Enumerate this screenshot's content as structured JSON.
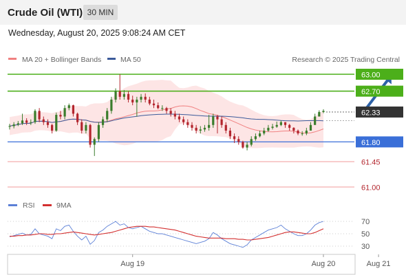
{
  "header": {
    "instrument": "Crude Oil (WTI)",
    "timeframe": "30 MIN"
  },
  "datetime": "Wednesday, August 20, 2025 9:08:24 AM CET",
  "credit": "Research © 2025 Trading Central",
  "colors": {
    "up": "#3a7d2c",
    "down": "#b3262e",
    "resistance": "#4caf1a",
    "current": "#333333",
    "pivot": "#3a6fd8",
    "support": "#f19a9a",
    "ma20": "#f08080",
    "ma50": "#3b5a9a",
    "band_fill": "#fde1e1",
    "arrow": "#2d62a8",
    "rsi": "#5b7fd6",
    "rsi_ma": "#d32f2f"
  },
  "chart_data": [
    {
      "type": "candlestick",
      "legend": [
        {
          "name": "MA 20 + Bollinger Bands",
          "color": "#f08080"
        },
        {
          "name": "MA 50",
          "color": "#3b5a9a"
        }
      ],
      "ylim": [
        60.85,
        63.25
      ],
      "x_labels": [
        {
          "label": "Aug 19",
          "index": 29
        },
        {
          "label": "Aug 20",
          "index": 74
        },
        {
          "label": "Aug 21",
          "index": 87
        }
      ],
      "levels": [
        {
          "label": "63.00",
          "value": 63.0,
          "kind": "resistance"
        },
        {
          "label": "62.70",
          "value": 62.7,
          "kind": "resistance"
        },
        {
          "label": "62.33",
          "value": 62.33,
          "kind": "current"
        },
        {
          "label": "61.80",
          "value": 61.8,
          "kind": "pivot"
        },
        {
          "label": "61.45",
          "value": 61.45,
          "kind": "support"
        },
        {
          "label": "61.00",
          "value": 61.0,
          "kind": "support"
        }
      ],
      "projection": {
        "from": [
          83,
          62.35
        ],
        "to": [
          90,
          62.98
        ]
      },
      "candles": {
        "open": [
          62.07,
          62.08,
          62.11,
          62.13,
          62.18,
          62.14,
          62.15,
          62.35,
          62.2,
          62.15,
          62.1,
          62.0,
          62.28,
          62.25,
          62.4,
          62.45,
          62.3,
          62.15,
          62.0,
          62.1,
          61.75,
          61.85,
          62.1,
          62.2,
          62.35,
          62.55,
          62.7,
          62.6,
          62.65,
          62.55,
          62.5,
          62.55,
          62.6,
          62.55,
          62.48,
          62.45,
          62.4,
          62.4,
          62.35,
          62.3,
          62.25,
          62.2,
          62.15,
          62.1,
          62.05,
          62.0,
          62.02,
          62.05,
          62.1,
          62.25,
          62.2,
          62.1,
          62.0,
          61.9,
          61.85,
          61.8,
          61.7,
          61.75,
          61.85,
          61.9,
          61.95,
          62.0,
          62.05,
          62.07,
          62.1,
          62.15,
          62.1,
          62.05,
          62.0,
          61.95,
          61.95,
          62.0,
          62.1,
          62.25,
          62.33
        ],
        "close": [
          62.08,
          62.11,
          62.13,
          62.18,
          62.14,
          62.15,
          62.35,
          62.2,
          62.15,
          62.1,
          62.0,
          62.28,
          62.25,
          62.4,
          62.45,
          62.3,
          62.15,
          62.0,
          62.1,
          61.75,
          61.85,
          62.1,
          62.2,
          62.35,
          62.55,
          62.7,
          62.6,
          62.65,
          62.55,
          62.5,
          62.55,
          62.6,
          62.55,
          62.48,
          62.45,
          62.4,
          62.4,
          62.35,
          62.3,
          62.25,
          62.2,
          62.15,
          62.1,
          62.05,
          62.0,
          62.02,
          62.05,
          62.1,
          62.25,
          62.2,
          62.1,
          62.0,
          61.9,
          61.85,
          61.8,
          61.7,
          61.75,
          61.85,
          61.9,
          61.95,
          62.0,
          62.05,
          62.07,
          62.1,
          62.15,
          62.1,
          62.05,
          62.0,
          61.95,
          61.95,
          62.0,
          62.1,
          62.25,
          62.33,
          62.35
        ],
        "high": [
          62.12,
          62.15,
          62.17,
          62.3,
          62.22,
          62.2,
          62.38,
          62.4,
          62.25,
          62.2,
          62.12,
          62.32,
          62.35,
          62.45,
          62.48,
          62.46,
          62.32,
          62.2,
          62.15,
          62.12,
          61.88,
          62.15,
          62.25,
          62.4,
          62.6,
          62.75,
          63.0,
          62.72,
          62.7,
          62.62,
          62.6,
          62.65,
          62.66,
          62.6,
          62.55,
          62.5,
          62.45,
          62.42,
          62.4,
          62.35,
          62.3,
          62.25,
          62.2,
          62.15,
          62.1,
          62.08,
          62.1,
          62.28,
          62.3,
          62.28,
          62.25,
          62.15,
          62.05,
          61.95,
          61.9,
          61.82,
          61.8,
          61.9,
          61.95,
          62.0,
          62.05,
          62.1,
          62.12,
          62.16,
          62.18,
          62.15,
          62.12,
          62.06,
          62.02,
          61.99,
          62.05,
          62.15,
          62.3,
          62.36,
          62.38
        ],
        "low": [
          62.02,
          62.04,
          62.08,
          62.1,
          62.1,
          62.1,
          62.12,
          62.15,
          62.1,
          62.05,
          61.95,
          61.98,
          62.2,
          62.2,
          62.36,
          62.25,
          62.1,
          61.95,
          61.95,
          61.7,
          61.55,
          61.8,
          62.05,
          62.15,
          62.3,
          62.5,
          62.55,
          62.55,
          62.5,
          62.45,
          62.25,
          62.5,
          62.5,
          62.45,
          62.4,
          62.38,
          62.35,
          62.3,
          62.25,
          62.2,
          62.15,
          62.1,
          62.05,
          62.0,
          61.95,
          61.95,
          61.98,
          62.0,
          62.05,
          61.95,
          62.05,
          61.95,
          61.85,
          61.78,
          61.75,
          61.68,
          61.65,
          61.72,
          61.82,
          61.88,
          61.92,
          61.98,
          62.02,
          62.05,
          62.08,
          62.05,
          62.0,
          61.95,
          61.92,
          61.91,
          61.92,
          62.05,
          62.2,
          62.28,
          62.31
        ]
      }
    },
    {
      "type": "line",
      "legend": [
        {
          "name": "RSI",
          "color": "#5b7fd6"
        },
        {
          "name": "9MA",
          "color": "#d32f2f"
        }
      ],
      "ylim": [
        20,
        80
      ],
      "yticks": [
        {
          "label": "70",
          "value": 70
        },
        {
          "label": "50",
          "value": 50
        },
        {
          "label": "30",
          "value": 30
        }
      ],
      "series": [
        {
          "name": "RSI",
          "values": [
            45,
            47,
            49,
            51,
            48,
            49,
            58,
            50,
            48,
            46,
            42,
            58,
            55,
            62,
            64,
            54,
            46,
            40,
            46,
            33,
            39,
            52,
            56,
            62,
            66,
            70,
            64,
            66,
            60,
            58,
            60,
            62,
            58,
            54,
            52,
            50,
            50,
            48,
            46,
            44,
            42,
            40,
            38,
            36,
            34,
            36,
            38,
            42,
            52,
            48,
            42,
            38,
            34,
            32,
            30,
            28,
            32,
            40,
            44,
            48,
            52,
            56,
            58,
            60,
            64,
            58,
            54,
            50,
            47,
            47,
            50,
            56,
            64,
            68,
            70
          ]
        },
        {
          "name": "9MA",
          "values": [
            46,
            46,
            47,
            47,
            48,
            48,
            49,
            50,
            50,
            49,
            49,
            50,
            50,
            51,
            52,
            53,
            52,
            51,
            50,
            49,
            48,
            49,
            50,
            51,
            52,
            54,
            56,
            58,
            60,
            61,
            62,
            62,
            62,
            61,
            61,
            60,
            59,
            58,
            57,
            56,
            54,
            52,
            50,
            48,
            46,
            45,
            44,
            43,
            43,
            43,
            43,
            42,
            42,
            42,
            41,
            41,
            40,
            40,
            41,
            42,
            43,
            44,
            46,
            48,
            50,
            52,
            53,
            53,
            52,
            51,
            50,
            50,
            52,
            55,
            58
          ]
        }
      ]
    }
  ]
}
